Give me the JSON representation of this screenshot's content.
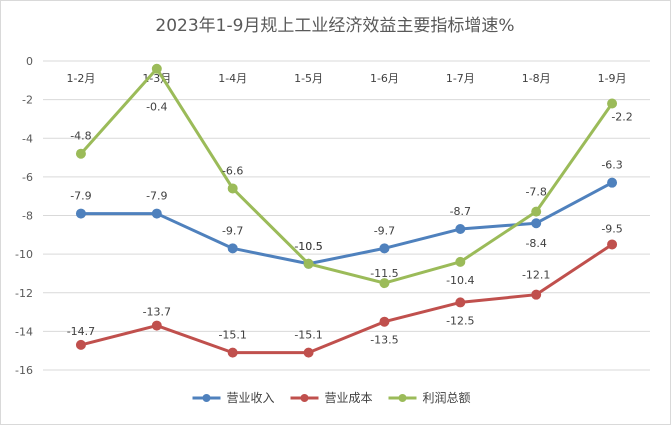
{
  "chart_data": {
    "type": "line",
    "title": "2023年1-9月规上工业经济效益主要指标增速%",
    "categories": [
      "1-2月",
      "1-3月",
      "1-4月",
      "1-5月",
      "1-6月",
      "1-7月",
      "1-8月",
      "1-9月"
    ],
    "ylim": [
      -16,
      0
    ],
    "yticks": [
      0,
      -2,
      -4,
      -6,
      -8,
      -10,
      -12,
      -14,
      -16
    ],
    "xaxis_position": "top",
    "grid": true,
    "legend_position": "bottom",
    "series": [
      {
        "name": "营业收入",
        "color": "#4f81bd",
        "values": [
          -7.9,
          -7.9,
          -9.7,
          -10.5,
          -9.7,
          -8.7,
          -8.4,
          -6.3
        ]
      },
      {
        "name": "营业成本",
        "color": "#c0504d",
        "values": [
          -14.7,
          -13.7,
          -15.1,
          -15.1,
          -13.5,
          -12.5,
          -12.1,
          -9.5
        ]
      },
      {
        "name": "利润总额",
        "color": "#9bbb59",
        "values": [
          -4.8,
          -0.4,
          -6.6,
          -10.5,
          -11.5,
          -10.4,
          -7.8,
          -2.2
        ]
      }
    ]
  }
}
